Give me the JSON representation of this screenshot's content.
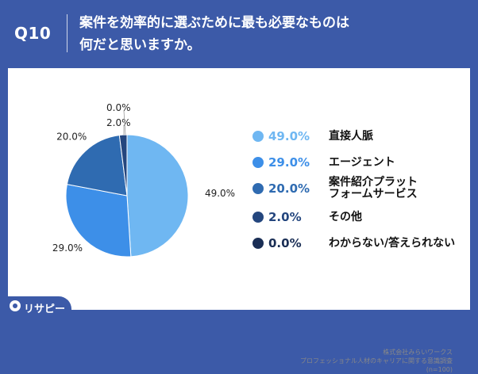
{
  "header": {
    "question_label": "Q10",
    "title_line1": "案件を効率的に選ぶために最も必要なものは",
    "title_line2": "何だと思いますか。"
  },
  "chart_data": {
    "type": "pie",
    "categories": [
      "直接人脈",
      "エージェント",
      "案件紹介プラットフォームサービス",
      "その他",
      "わからない/答えられない"
    ],
    "values": [
      49.0,
      29.0,
      20.0,
      2.0,
      0.0
    ],
    "value_labels": [
      "49.0%",
      "29.0%",
      "20.0%",
      "2.0%",
      "0.0%"
    ],
    "colors": [
      "#6fb7f2",
      "#3d8fe8",
      "#2f6bb1",
      "#24467e",
      "#1a2e55"
    ],
    "start_angle_deg": 0,
    "direction": "clockwise",
    "legend_placement": "right"
  },
  "legend": [
    {
      "pct": "49.0%",
      "label_line1": "直接人脈",
      "label_line2": ""
    },
    {
      "pct": "29.0%",
      "label_line1": "エージェント",
      "label_line2": ""
    },
    {
      "pct": "20.0%",
      "label_line1": "案件紹介プラット",
      "label_line2": "フォームサービス"
    },
    {
      "pct": "2.0%",
      "label_line1": "その他",
      "label_line2": ""
    },
    {
      "pct": "0.0%",
      "label_line1": "わからない/答えられない",
      "label_line2": ""
    }
  ],
  "source": {
    "line1": "株式会社みらいワークス",
    "line2": "プロフェッショナル人材のキャリアに関する意識調査",
    "line3": "(n=100)"
  },
  "logo": {
    "text": "リサピー"
  }
}
